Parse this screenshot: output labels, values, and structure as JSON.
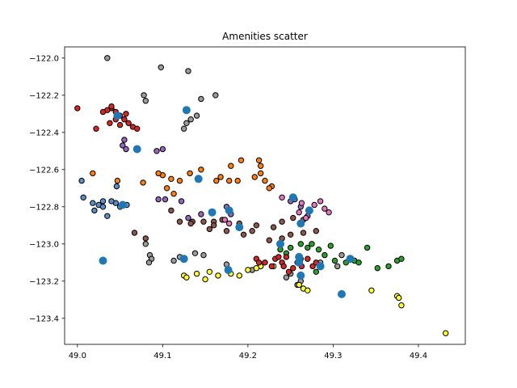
{
  "chart_data": {
    "type": "scatter",
    "title": "Amenities scatter",
    "xlabel": "",
    "ylabel": "",
    "xlim": [
      48.985,
      49.455
    ],
    "ylim": [
      -123.54,
      -121.94
    ],
    "x_ticks": [
      "49.0",
      "49.1",
      "49.2",
      "49.3",
      "49.4"
    ],
    "y_ticks": [
      "−122.0",
      "−122.2",
      "−122.4",
      "−122.6",
      "−122.8",
      "−123.0",
      "−123.2",
      "−123.4"
    ],
    "grid": false,
    "legend": "none",
    "colors": {
      "red": "#d62728",
      "gray": "#9b9b9b",
      "orange": "#ff7f0e",
      "blue": "#5b8fc7",
      "purple": "#9467bd",
      "brown": "#8c564b",
      "pink": "#e377c2",
      "green": "#2ca02c",
      "yellow": "#ffff33",
      "centroid": "#1f77b4"
    },
    "clusters": [
      {
        "color": "red",
        "points": [
          [
            49.04,
            -122.27
          ],
          [
            49.045,
            -122.29
          ],
          [
            49.05,
            -122.31
          ],
          [
            49.035,
            -122.28
          ],
          [
            49.055,
            -122.33
          ],
          [
            49.06,
            -122.35
          ],
          [
            49.04,
            -122.26
          ],
          [
            49.05,
            -122.36
          ],
          [
            49.065,
            -122.37
          ],
          [
            49.03,
            -122.29
          ],
          [
            49.045,
            -122.33
          ],
          [
            49.057,
            -122.3
          ],
          [
            49.07,
            -122.38
          ],
          [
            49.0,
            -122.27
          ],
          [
            49.022,
            -122.38
          ],
          [
            49.038,
            -122.35
          ]
        ]
      },
      {
        "color": "gray",
        "points": [
          [
            49.035,
            -122.0
          ],
          [
            49.098,
            -122.05
          ],
          [
            49.13,
            -122.07
          ],
          [
            49.078,
            -122.2
          ],
          [
            49.08,
            -122.23
          ],
          [
            49.128,
            -122.28
          ],
          [
            49.133,
            -122.33
          ],
          [
            49.128,
            -122.35
          ],
          [
            49.145,
            -122.22
          ],
          [
            49.162,
            -122.2
          ],
          [
            49.14,
            -122.31
          ],
          [
            49.125,
            -122.38
          ],
          [
            49.12,
            -123.07
          ],
          [
            49.113,
            -123.09
          ],
          [
            49.148,
            -123.06
          ],
          [
            49.138,
            -123.05
          ],
          [
            49.08,
            -123.0
          ],
          [
            49.085,
            -123.06
          ],
          [
            49.087,
            -123.08
          ],
          [
            49.084,
            -123.1
          ],
          [
            49.175,
            -123.11
          ],
          [
            49.205,
            -123.14
          ],
          [
            49.215,
            -123.12
          ],
          [
            49.25,
            -123.16
          ],
          [
            49.262,
            -123.2
          ],
          [
            49.258,
            -123.22
          ],
          [
            49.285,
            -123.1
          ],
          [
            49.31,
            -123.06
          ],
          [
            49.305,
            -123.12
          ],
          [
            49.245,
            -123.18
          ]
        ]
      },
      {
        "color": "purple",
        "points": [
          [
            49.055,
            -122.44
          ],
          [
            49.053,
            -122.47
          ],
          [
            49.057,
            -122.49
          ],
          [
            49.1,
            -122.49
          ],
          [
            49.093,
            -122.5
          ],
          [
            49.095,
            -122.76
          ],
          [
            49.103,
            -122.76
          ],
          [
            49.122,
            -122.77
          ],
          [
            49.13,
            -122.86
          ],
          [
            49.145,
            -122.84
          ],
          [
            49.18,
            -122.84
          ],
          [
            49.175,
            -122.8
          ],
          [
            49.25,
            -122.77
          ],
          [
            49.262,
            -122.8
          ],
          [
            49.27,
            -122.85
          ]
        ]
      },
      {
        "color": "orange",
        "points": [
          [
            49.018,
            -122.62
          ],
          [
            49.047,
            -122.66
          ],
          [
            49.077,
            -122.67
          ],
          [
            49.1,
            -122.63
          ],
          [
            49.11,
            -122.65
          ],
          [
            49.12,
            -122.66
          ],
          [
            49.095,
            -122.62
          ],
          [
            49.132,
            -122.62
          ],
          [
            49.105,
            -122.7
          ],
          [
            49.113,
            -122.73
          ],
          [
            49.163,
            -122.66
          ],
          [
            49.178,
            -122.66
          ],
          [
            49.188,
            -122.66
          ],
          [
            49.168,
            -122.64
          ],
          [
            49.208,
            -122.64
          ],
          [
            49.228,
            -122.69
          ],
          [
            49.213,
            -122.55
          ],
          [
            49.215,
            -122.58
          ],
          [
            49.215,
            -122.62
          ],
          [
            49.22,
            -122.66
          ],
          [
            49.225,
            -122.7
          ],
          [
            49.18,
            -122.58
          ],
          [
            49.192,
            -122.55
          ],
          [
            49.145,
            -122.6
          ]
        ]
      },
      {
        "color": "blue",
        "points": [
          [
            49.005,
            -122.66
          ],
          [
            49.007,
            -122.75
          ],
          [
            49.018,
            -122.78
          ],
          [
            49.025,
            -122.79
          ],
          [
            49.03,
            -122.8
          ],
          [
            49.045,
            -122.78
          ],
          [
            49.05,
            -122.8
          ],
          [
            49.058,
            -122.79
          ],
          [
            49.035,
            -122.85
          ],
          [
            49.02,
            -122.82
          ],
          [
            49.04,
            -122.77
          ],
          [
            49.046,
            -122.69
          ],
          [
            49.03,
            -122.77
          ]
        ]
      },
      {
        "color": "brown",
        "points": [
          [
            49.135,
            -122.88
          ],
          [
            49.148,
            -122.88
          ],
          [
            49.16,
            -122.88
          ],
          [
            49.17,
            -122.87
          ],
          [
            49.19,
            -122.89
          ],
          [
            49.21,
            -122.9
          ],
          [
            49.23,
            -122.91
          ],
          [
            49.155,
            -122.92
          ],
          [
            49.133,
            -122.89
          ],
          [
            49.195,
            -122.95
          ],
          [
            49.205,
            -122.93
          ],
          [
            49.24,
            -122.88
          ],
          [
            49.253,
            -122.86
          ],
          [
            49.265,
            -122.87
          ],
          [
            49.12,
            -122.88
          ],
          [
            49.175,
            -122.93
          ],
          [
            49.067,
            -122.94
          ],
          [
            49.08,
            -122.97
          ],
          [
            49.11,
            -122.82
          ],
          [
            49.24,
            -122.97
          ],
          [
            49.25,
            -122.95
          ],
          [
            49.265,
            -122.94
          ],
          [
            49.28,
            -122.93
          ],
          [
            49.225,
            -122.98
          ],
          [
            49.16,
            -122.9
          ]
        ]
      },
      {
        "color": "pink",
        "points": [
          [
            49.263,
            -122.78
          ],
          [
            49.278,
            -122.79
          ],
          [
            49.29,
            -122.81
          ],
          [
            49.295,
            -122.83
          ],
          [
            49.26,
            -122.83
          ],
          [
            49.24,
            -122.75
          ],
          [
            49.255,
            -122.76
          ],
          [
            49.268,
            -122.86
          ],
          [
            49.285,
            -122.77
          ],
          [
            49.173,
            -122.87
          ],
          [
            49.178,
            -122.89
          ]
        ]
      },
      {
        "color": "green",
        "points": [
          [
            49.25,
            -123.02
          ],
          [
            49.262,
            -123.0
          ],
          [
            49.275,
            -123.0
          ],
          [
            49.283,
            -123.03
          ],
          [
            49.29,
            -123.06
          ],
          [
            49.302,
            -123.09
          ],
          [
            49.315,
            -123.1
          ],
          [
            49.325,
            -123.09
          ],
          [
            49.33,
            -123.1
          ],
          [
            49.34,
            -123.02
          ],
          [
            49.352,
            -123.13
          ],
          [
            49.365,
            -123.12
          ],
          [
            49.375,
            -123.09
          ],
          [
            49.38,
            -123.08
          ],
          [
            49.28,
            -123.15
          ],
          [
            49.262,
            -123.08
          ],
          [
            49.245,
            -123.05
          ],
          [
            49.297,
            -123.01
          ],
          [
            49.27,
            -123.02
          ],
          [
            49.238,
            -123.03
          ]
        ]
      },
      {
        "color": "yellow",
        "points": [
          [
            49.125,
            -123.17
          ],
          [
            49.14,
            -123.16
          ],
          [
            49.155,
            -123.15
          ],
          [
            49.165,
            -123.17
          ],
          [
            49.18,
            -123.16
          ],
          [
            49.2,
            -123.14
          ],
          [
            49.215,
            -123.12
          ],
          [
            49.23,
            -123.12
          ],
          [
            49.26,
            -123.22
          ],
          [
            49.265,
            -123.24
          ],
          [
            49.27,
            -123.25
          ],
          [
            49.15,
            -123.19
          ],
          [
            49.19,
            -123.17
          ],
          [
            49.345,
            -123.25
          ],
          [
            49.375,
            -123.28
          ],
          [
            49.377,
            -123.29
          ],
          [
            49.38,
            -123.33
          ],
          [
            49.432,
            -123.48
          ],
          [
            49.128,
            -123.18
          ],
          [
            49.21,
            -123.13
          ]
        ]
      },
      {
        "color": "red",
        "points": [
          [
            49.21,
            -123.08
          ],
          [
            49.22,
            -123.1
          ],
          [
            49.232,
            -123.08
          ],
          [
            49.24,
            -123.1
          ],
          [
            49.228,
            -123.12
          ],
          [
            49.213,
            -123.1
          ],
          [
            49.245,
            -123.07
          ],
          [
            49.258,
            -123.1
          ],
          [
            49.263,
            -123.12
          ],
          [
            49.27,
            -123.08
          ],
          [
            49.276,
            -123.12
          ],
          [
            49.253,
            -123.13
          ],
          [
            49.242,
            -123.12
          ],
          [
            49.236,
            -123.07
          ],
          [
            49.28,
            -123.1
          ],
          [
            49.248,
            -123.15
          ]
        ]
      }
    ],
    "centroids": [
      [
        49.047,
        -122.31
      ],
      [
        49.128,
        -122.28
      ],
      [
        49.07,
        -122.49
      ],
      [
        49.142,
        -122.65
      ],
      [
        49.053,
        -122.79
      ],
      [
        49.178,
        -122.82
      ],
      [
        49.253,
        -122.75
      ],
      [
        49.272,
        -122.82
      ],
      [
        49.262,
        -122.89
      ],
      [
        49.19,
        -122.91
      ],
      [
        49.238,
        -123.0
      ],
      [
        49.26,
        -123.07
      ],
      [
        49.26,
        -123.1
      ],
      [
        49.285,
        -123.12
      ],
      [
        49.32,
        -123.08
      ],
      [
        49.125,
        -123.08
      ],
      [
        49.03,
        -123.09
      ],
      [
        49.177,
        -123.14
      ],
      [
        49.262,
        -123.17
      ],
      [
        49.31,
        -123.27
      ],
      [
        49.158,
        -122.83
      ]
    ]
  }
}
